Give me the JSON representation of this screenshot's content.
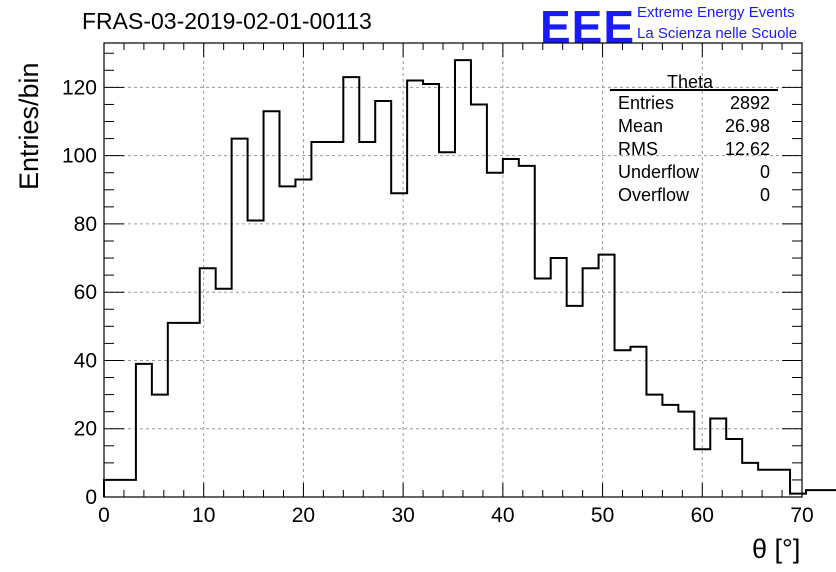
{
  "title": "FRAS-03-2019-02-01-00113",
  "logo": {
    "mark": "EEE",
    "line1": "Extreme Energy Events",
    "line2": "La Scienza nelle Scuole",
    "color": "#1a1aff"
  },
  "chart_data": {
    "type": "histogram",
    "xlabel": "θ [°]",
    "ylabel": "Entries/bin",
    "xlim": [
      0,
      70
    ],
    "ylim": [
      0,
      133
    ],
    "xticks": [
      0,
      10,
      20,
      30,
      40,
      50,
      60,
      70
    ],
    "yticks": [
      0,
      20,
      40,
      60,
      80,
      100,
      120
    ],
    "grid": true,
    "bin_width": 1.6,
    "bin_start": 0,
    "values": [
      5,
      5,
      39,
      30,
      51,
      51,
      67,
      61,
      105,
      81,
      113,
      91,
      93,
      104,
      104,
      123,
      104,
      116,
      89,
      122,
      121,
      101,
      128,
      115,
      95,
      99,
      97,
      64,
      70,
      56,
      67,
      71,
      43,
      44,
      30,
      27,
      25,
      14,
      23,
      17,
      10,
      8,
      8,
      1,
      2,
      2
    ]
  },
  "stats": {
    "name": "Theta",
    "rows": [
      {
        "label": "Entries",
        "value": "2892"
      },
      {
        "label": "Mean",
        "value": "26.98"
      },
      {
        "label": "RMS",
        "value": "12.62"
      },
      {
        "label": "Underflow",
        "value": "0"
      },
      {
        "label": "Overflow",
        "value": "0"
      }
    ]
  }
}
